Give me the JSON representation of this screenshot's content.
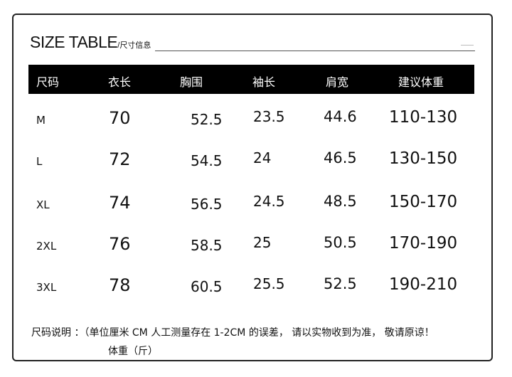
{
  "title": {
    "main": "SIZE TABLE",
    "sub": "/尺寸信息"
  },
  "headers": [
    "尺码",
    "衣长",
    "胸围",
    "袖长",
    "肩宽",
    "建议体重"
  ],
  "rows": [
    [
      "M",
      "70",
      "52.5",
      "23.5",
      "44.6",
      "110-130"
    ],
    [
      "L",
      "72",
      "54.5",
      "24",
      "46.5",
      "130-150"
    ],
    [
      "XL",
      "74",
      "56.5",
      "24.5",
      "48.5",
      "150-170"
    ],
    [
      "2XL",
      "76",
      "58.5",
      "25",
      "50.5",
      "170-190"
    ],
    [
      "3XL",
      "78",
      "60.5",
      "25.5",
      "52.5",
      "190-210"
    ]
  ],
  "note": {
    "line1": "尺码说明 ：（单位厘米 CM 人工测量存在 1-2CM 的误差， 请以实物收到为准， 敬请原谅！",
    "line2": "体重（斤）"
  },
  "colors": {
    "header_bg": "#000000",
    "header_text": "#ffffff"
  }
}
